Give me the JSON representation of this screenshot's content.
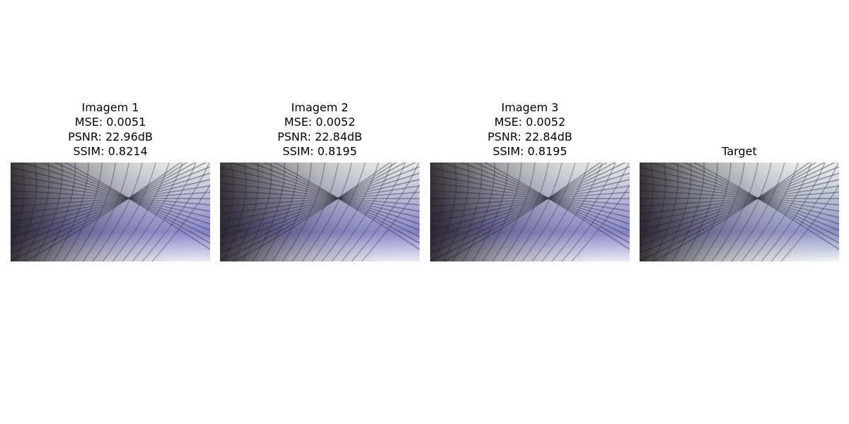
{
  "panels": [
    {
      "title_lines": [
        "Imagem 1",
        "MSE: 0.0051",
        "PSNR: 22.96dB",
        "SSIM: 0.8214"
      ]
    },
    {
      "title_lines": [
        "Imagem 2",
        "MSE: 0.0052",
        "PSNR: 22.84dB",
        "SSIM: 0.8195"
      ]
    },
    {
      "title_lines": [
        "Imagem 3",
        "MSE: 0.0052",
        "PSNR: 22.84dB",
        "SSIM: 0.8195"
      ]
    },
    {
      "title_lines": [
        "Target"
      ]
    }
  ]
}
